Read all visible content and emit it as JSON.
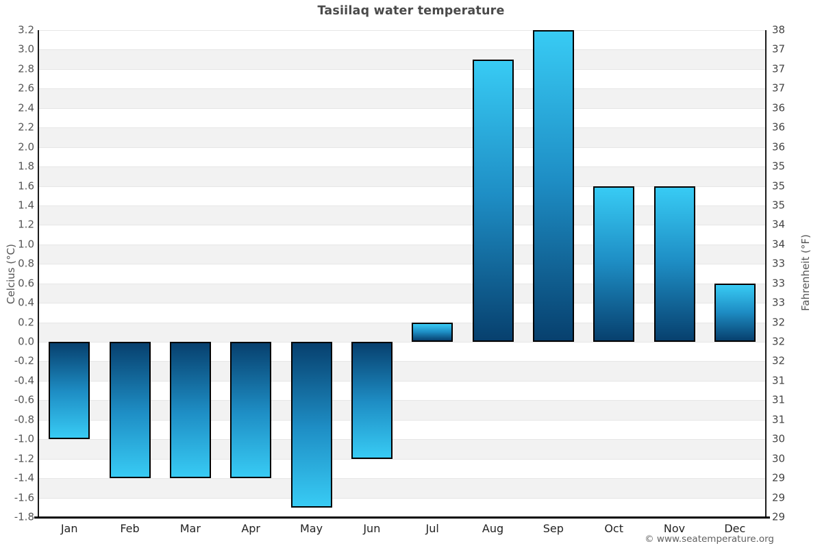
{
  "title": "Tasiilaq water temperature",
  "footer": {
    "credit": "© www.seatemperature.org"
  },
  "axes": {
    "left_label": "Celcius (°C)",
    "right_label": "Fahrenheit (°F)",
    "left_ticks": [
      "3.2",
      "3.0",
      "2.8",
      "2.6",
      "2.4",
      "2.2",
      "2.0",
      "1.8",
      "1.6",
      "1.4",
      "1.2",
      "1.0",
      "0.8",
      "0.6",
      "0.4",
      "0.2",
      "0.0",
      "-0.2",
      "-0.4",
      "-0.6",
      "-0.8",
      "-1.0",
      "-1.2",
      "-1.4",
      "-1.6",
      "-1.8"
    ],
    "right_ticks": [
      "38",
      "37",
      "37",
      "37",
      "36",
      "36",
      "36",
      "35",
      "35",
      "35",
      "34",
      "34",
      "33",
      "33",
      "33",
      "32",
      "32",
      "32",
      "31",
      "31",
      "31",
      "30",
      "30",
      "29",
      "29",
      "29"
    ]
  },
  "chart_data": {
    "type": "bar",
    "title": "Tasiilaq water temperature",
    "categories": [
      "Jan",
      "Feb",
      "Mar",
      "Apr",
      "May",
      "Jun",
      "Jul",
      "Aug",
      "Sep",
      "Oct",
      "Nov",
      "Dec"
    ],
    "values": [
      -1.0,
      -1.4,
      -1.4,
      -1.4,
      -1.7,
      -1.2,
      0.2,
      2.9,
      3.2,
      1.6,
      1.6,
      0.6
    ],
    "xlabel": "",
    "ylabel_left": "Celcius (°C)",
    "ylabel_right": "Fahrenheit (°F)",
    "ylim": [
      -1.8,
      3.2
    ],
    "ytick_step": 0.2,
    "grid": "alternating-horizontal-bands",
    "legend": "none",
    "colors": {
      "bar_tip_light": "#38cbf4",
      "bar_mid": "#1e8ec5",
      "bar_zero_dark": "#07406e",
      "bar_border": "#000000",
      "band_gray": "#f2f2f2",
      "band_white": "#ffffff",
      "gridline": "#e6e6e6",
      "axis_line": "#1a1a1a",
      "title_text": "#4a4a4a",
      "tick_text": "#555555"
    }
  }
}
